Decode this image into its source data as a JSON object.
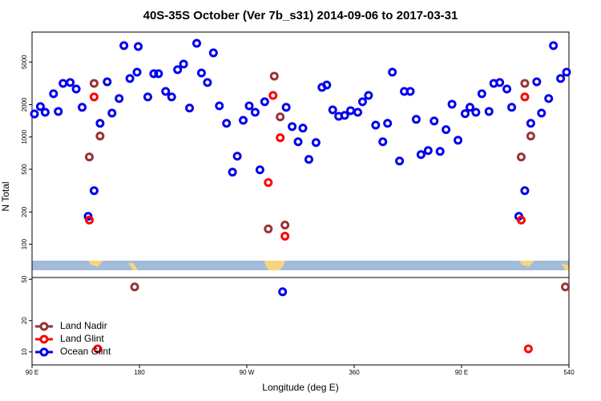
{
  "chart_data": [
    {
      "type": "scatter",
      "title": "40S-35S October (Ver 7b_s31)   2014-09-06 to 2017-03-31",
      "ylabel": "N Total",
      "log_y": true,
      "xlim": [
        90,
        540
      ],
      "ylim": [
        49,
        9500
      ],
      "yticks": [
        100,
        200,
        500,
        1000,
        2000,
        5000
      ],
      "series": [
        {
          "color": "#0000ee",
          "x": [
            92,
            97,
            101,
            108,
            112,
            116,
            122,
            127,
            132,
            137,
            142,
            147,
            153,
            157,
            163,
            167,
            172,
            178,
            179,
            187,
            192,
            196,
            202,
            207,
            212,
            217,
            222,
            228,
            232,
            237,
            242,
            247,
            253,
            258,
            262,
            267,
            272,
            277,
            281,
            285,
            303,
            308,
            313,
            317,
            322,
            328,
            333,
            337,
            342,
            347,
            352,
            357,
            363,
            367,
            372,
            378,
            384,
            388,
            392,
            398,
            402,
            407,
            412,
            416,
            422,
            427,
            432,
            437,
            442,
            447,
            453,
            457,
            462,
            467,
            473,
            477,
            482,
            488,
            492,
            498,
            503,
            508,
            513,
            517,
            523,
            527,
            533,
            538
          ],
          "values": [
            1640,
            1920,
            1700,
            2530,
            1730,
            3160,
            3220,
            2800,
            1890,
            182,
            316,
            1340,
            3270,
            1670,
            2280,
            7100,
            3510,
            4020,
            6970,
            2360,
            3890,
            3890,
            2660,
            2360,
            4240,
            4780,
            1860,
            7460,
            3950,
            3220,
            6080,
            1950,
            1340,
            470,
            662,
            1430,
            1950,
            1700,
            494,
            2130,
            1890,
            1250,
            902,
            1210,
            618,
            887,
            2900,
            3050,
            1790,
            1560,
            1590,
            1760,
            1700,
            2130,
            2440,
            1290,
            902,
            1340,
            4020,
            597,
            2660,
            2660,
            1460,
            685,
            747,
            1410,
            734,
            1170,
            2020,
            933,
            1650,
            1890,
            1700,
            2530,
            1730,
            3160,
            3220,
            2800,
            1890,
            182,
            316,
            1340,
            3270,
            1670,
            2280,
            7100,
            3510,
            4020
          ]
        },
        {
          "color": "#993333",
          "x": [
            138,
            142,
            147,
            293,
            298,
            288,
            302,
            500,
            503,
            508
          ],
          "values": [
            651,
            3160,
            1020,
            3690,
            1540,
            139,
            151,
            651,
            3160,
            1020
          ]
        },
        {
          "color": "#ff0000",
          "x": [
            138,
            142,
            288,
            298,
            292,
            302,
            500,
            503
          ],
          "values": [
            168,
            2360,
            376,
            983,
            2440,
            119,
            168,
            2360
          ]
        }
      ]
    },
    {
      "type": "scatter",
      "xlabel": "Longitude (deg E)",
      "log_y": true,
      "legend": "lower left",
      "xlim": [
        90,
        540
      ],
      "xticks": [
        {
          "value": 90,
          "label": "90 E"
        },
        180,
        {
          "value": 270,
          "label": "90 W"
        },
        360,
        {
          "value": 450,
          "label": "90 E"
        },
        540
      ],
      "ylim": [
        7.5,
        52
      ],
      "yticks": [
        10,
        20,
        50
      ],
      "series": [
        {
          "name": "Land Nadir",
          "color": "#993333",
          "x": [
            176,
            537
          ],
          "values": [
            42.2,
            42.2
          ]
        },
        {
          "name": "Land Glint",
          "color": "#ff0000",
          "x": [
            145,
            506
          ],
          "values": [
            10.7,
            10.7
          ]
        },
        {
          "name": "Ocean Glint",
          "color": "#0000ee",
          "x": [
            300
          ],
          "values": [
            37.9
          ]
        }
      ]
    }
  ]
}
